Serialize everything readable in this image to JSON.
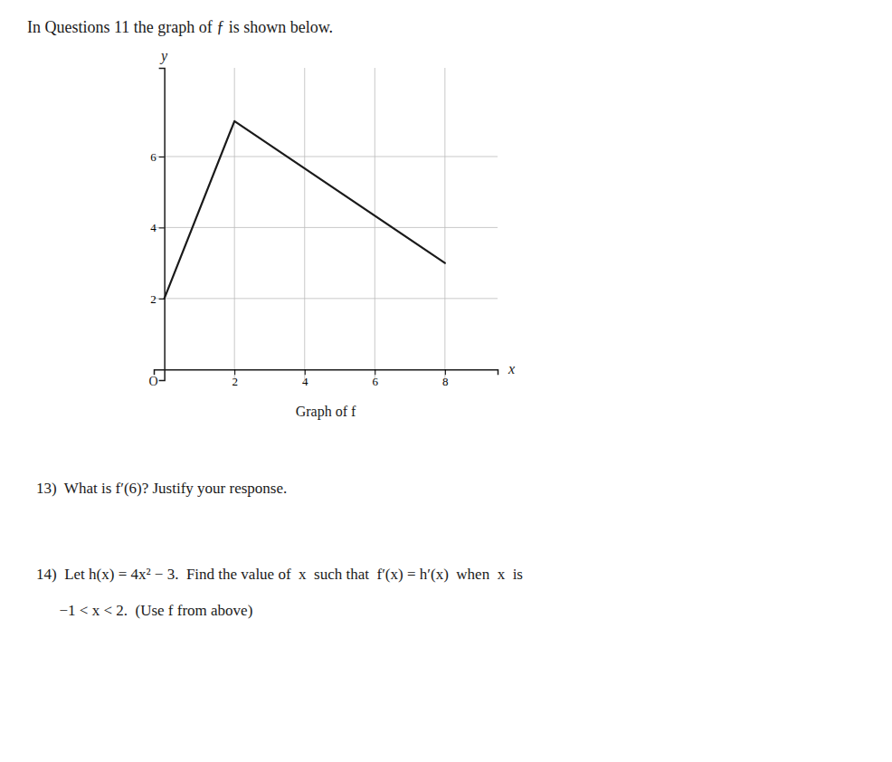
{
  "chart_data": {
    "type": "line",
    "title": "In Questions 11 the graph of ƒ is shown below.",
    "x_label": "x",
    "y_label": "y",
    "x": [
      0,
      2,
      8
    ],
    "values": [
      2,
      7,
      3
    ],
    "color": "#1a1a1a",
    "xlim": [
      -0.3,
      9.5
    ],
    "ylim": [
      -0.3,
      8.5
    ],
    "xticks": [
      2,
      4,
      6,
      8
    ],
    "yticks": [
      2,
      4,
      6
    ],
    "grid": true,
    "annotations": [
      "O",
      "Graph of f",
      "13)  What is f′(6)? Justify your response.",
      "14)  Let h(x) = 4x² − 3.  Find the value of  x  such that  f′(x) = h′(x)  when  x  is",
      "      −1 < x < 2.  (Use f from above)"
    ]
  }
}
